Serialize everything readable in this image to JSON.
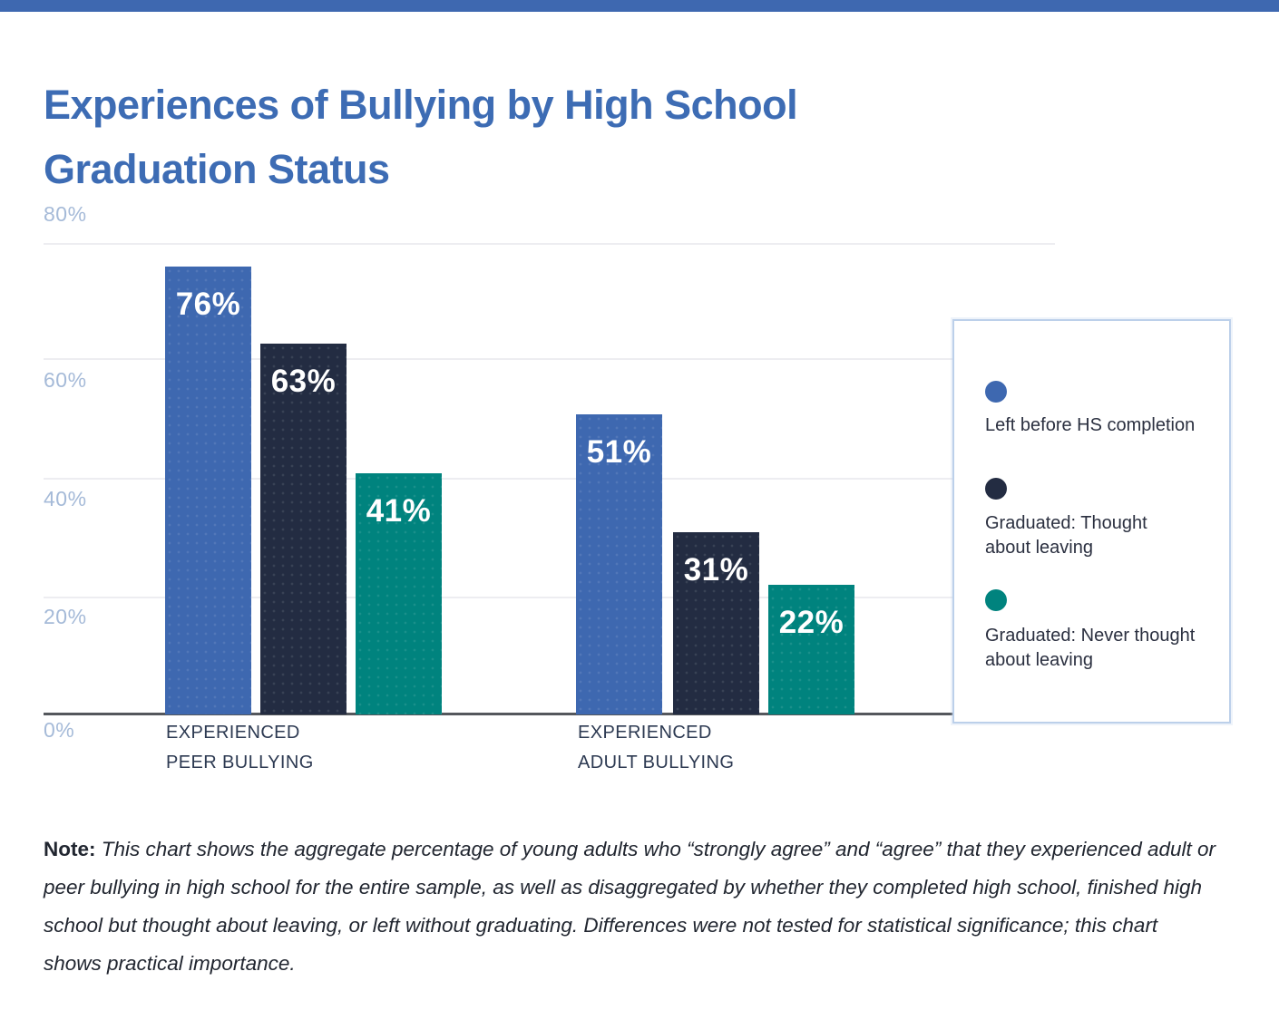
{
  "accent_color": "#3e68b0",
  "title": {
    "text": "Experiences of Bullying by High School Graduation Status",
    "line1": "Experiences of Bullying by High School",
    "line2": "Graduation Status",
    "color": "#3d6cb4"
  },
  "chart_data": {
    "type": "bar",
    "title": "Experiences of Bullying by High School Graduation Status",
    "categories": [
      "Experienced Peer Bullying",
      "Experienced Adult Bullying"
    ],
    "category_lines": [
      [
        "EXPERIENCED",
        "PEER BULLYING"
      ],
      [
        "EXPERIENCED",
        "ADULT BULLYING"
      ]
    ],
    "series": [
      {
        "name": "Left before HS completion",
        "color": "#3e68b0",
        "values": [
          76,
          51
        ],
        "labels": [
          "76%",
          "51%"
        ]
      },
      {
        "name": "Graduated: Thought about leaving",
        "color": "#232c42",
        "values": [
          63,
          31
        ],
        "labels": [
          "63%",
          "31%"
        ]
      },
      {
        "name": "Graduated: Never thought about leaving",
        "color": "#00837e",
        "values": [
          41,
          22
        ],
        "labels": [
          "41%",
          "22%"
        ]
      }
    ],
    "yticks": [
      "80%",
      "60%",
      "40%",
      "20%",
      "0%"
    ],
    "ylim": [
      0,
      80
    ],
    "grid": true,
    "legend_position": "right"
  },
  "legend": {
    "items": [
      {
        "label": "Left before HS completion",
        "line1": "Left before HS completion",
        "line2": "",
        "color": "#3e68b0"
      },
      {
        "label": "Graduated: Thought about leaving",
        "line1": "Graduated: Thought",
        "line2": "about leaving",
        "color": "#232c42"
      },
      {
        "label": "Graduated: Never thought about leaving",
        "line1": "Graduated: Never thought",
        "line2": "about leaving",
        "color": "#00837e"
      }
    ]
  },
  "note": {
    "label": "Note:",
    "text": "This chart shows the aggregate percentage of young adults who “strongly agree” and “agree” that they experienced adult or peer bullying in high school for the entire sample, as well as disaggregated by whether they completed high school, finished high school but thought about leaving, or left without graduating. Differences were not tested for statistical significance; this chart shows practical importance."
  }
}
